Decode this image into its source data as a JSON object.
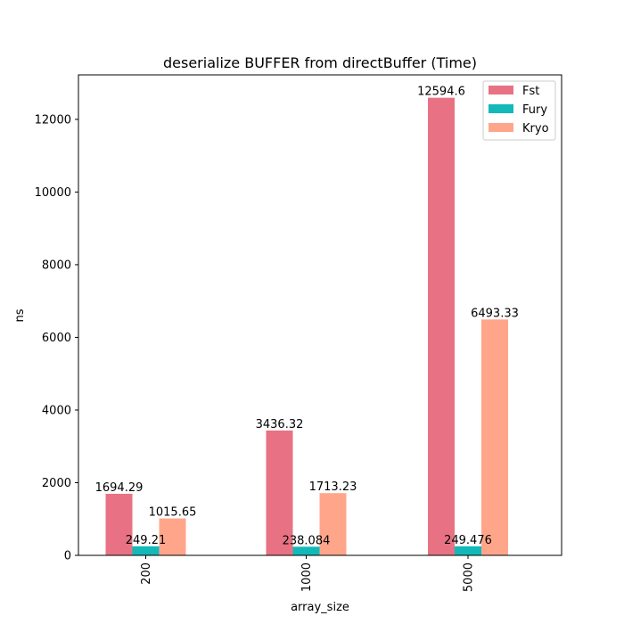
{
  "chart_data": {
    "type": "bar",
    "title": "deserialize BUFFER from directBuffer (Time)",
    "xlabel": "array_size",
    "ylabel": "ns",
    "categories": [
      "200",
      "1000",
      "5000"
    ],
    "series": [
      {
        "name": "Fst",
        "color": "#e87283",
        "values": [
          1694.29,
          3436.32,
          12594.6
        ],
        "labels": [
          "1694.29",
          "3436.32",
          "12594.6"
        ]
      },
      {
        "name": "Fury",
        "color": "#13b9b9",
        "values": [
          249.21,
          238.084,
          249.476
        ],
        "labels": [
          "249.21",
          "238.084",
          "249.476"
        ]
      },
      {
        "name": "Kryo",
        "color": "#ffa68a",
        "values": [
          1015.65,
          1713.23,
          6493.33
        ],
        "labels": [
          "1015.65",
          "1713.23",
          "6493.33"
        ]
      }
    ],
    "yticks": [
      0,
      2000,
      4000,
      6000,
      8000,
      10000,
      12000
    ],
    "ylim": [
      0,
      13224.33
    ],
    "legend_position": "top-right",
    "grid": false
  }
}
